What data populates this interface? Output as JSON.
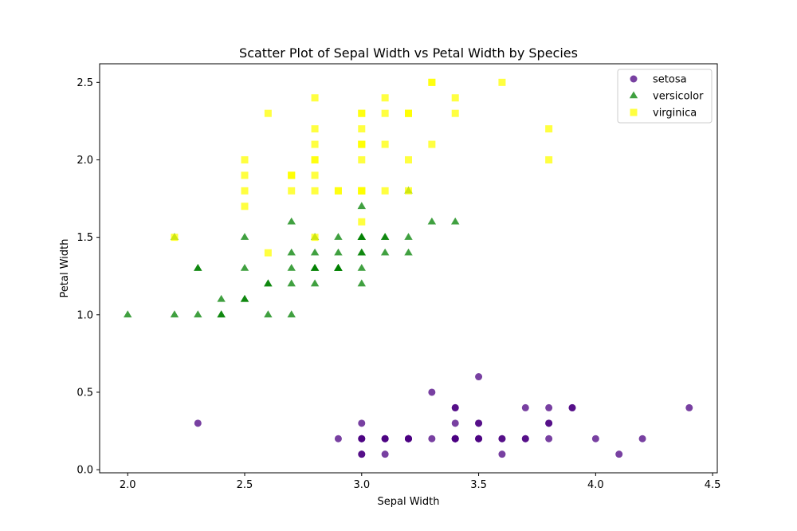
{
  "chart_data": {
    "type": "scatter",
    "title": "Scatter Plot of Sepal Width vs Petal Width by Species",
    "xlabel": "Sepal Width",
    "ylabel": "Petal Width",
    "xlim": [
      1.88,
      4.52
    ],
    "ylim": [
      -0.02,
      2.62
    ],
    "xticks": [
      2.0,
      2.5,
      3.0,
      3.5,
      4.0,
      4.5
    ],
    "xtick_labels": [
      "2.0",
      "2.5",
      "3.0",
      "3.5",
      "4.0",
      "4.5"
    ],
    "yticks": [
      0.0,
      0.5,
      1.0,
      1.5,
      2.0,
      2.5
    ],
    "ytick_labels": [
      "0.0",
      "0.5",
      "1.0",
      "1.5",
      "2.0",
      "2.5"
    ],
    "grid": false,
    "legend_position": "top-right",
    "series": [
      {
        "name": "setosa",
        "marker": "circle",
        "color": "#4b0082",
        "points": [
          [
            3.5,
            0.2
          ],
          [
            3.0,
            0.2
          ],
          [
            3.2,
            0.2
          ],
          [
            3.1,
            0.2
          ],
          [
            3.6,
            0.2
          ],
          [
            3.9,
            0.4
          ],
          [
            3.4,
            0.3
          ],
          [
            3.4,
            0.2
          ],
          [
            2.9,
            0.2
          ],
          [
            3.1,
            0.1
          ],
          [
            3.7,
            0.2
          ],
          [
            3.4,
            0.2
          ],
          [
            3.0,
            0.1
          ],
          [
            3.0,
            0.1
          ],
          [
            4.0,
            0.2
          ],
          [
            4.4,
            0.4
          ],
          [
            3.9,
            0.4
          ],
          [
            3.5,
            0.3
          ],
          [
            3.8,
            0.3
          ],
          [
            3.8,
            0.3
          ],
          [
            3.4,
            0.2
          ],
          [
            3.7,
            0.4
          ],
          [
            3.6,
            0.2
          ],
          [
            3.3,
            0.5
          ],
          [
            3.4,
            0.2
          ],
          [
            3.0,
            0.2
          ],
          [
            3.4,
            0.4
          ],
          [
            3.5,
            0.2
          ],
          [
            3.4,
            0.2
          ],
          [
            3.2,
            0.2
          ],
          [
            3.1,
            0.2
          ],
          [
            3.4,
            0.4
          ],
          [
            4.1,
            0.1
          ],
          [
            4.2,
            0.2
          ],
          [
            3.1,
            0.2
          ],
          [
            3.2,
            0.2
          ],
          [
            3.5,
            0.2
          ],
          [
            3.6,
            0.1
          ],
          [
            3.0,
            0.2
          ],
          [
            3.4,
            0.2
          ],
          [
            3.5,
            0.3
          ],
          [
            2.3,
            0.3
          ],
          [
            3.2,
            0.2
          ],
          [
            3.5,
            0.6
          ],
          [
            3.8,
            0.4
          ],
          [
            3.0,
            0.3
          ],
          [
            3.8,
            0.2
          ],
          [
            3.2,
            0.2
          ],
          [
            3.7,
            0.2
          ],
          [
            3.3,
            0.2
          ]
        ]
      },
      {
        "name": "versicolor",
        "marker": "triangle",
        "color": "#008000",
        "points": [
          [
            3.2,
            1.4
          ],
          [
            3.2,
            1.5
          ],
          [
            3.1,
            1.5
          ],
          [
            2.3,
            1.3
          ],
          [
            2.8,
            1.5
          ],
          [
            2.8,
            1.3
          ],
          [
            3.3,
            1.6
          ],
          [
            2.4,
            1.0
          ],
          [
            2.9,
            1.3
          ],
          [
            2.7,
            1.4
          ],
          [
            2.0,
            1.0
          ],
          [
            3.0,
            1.5
          ],
          [
            2.2,
            1.0
          ],
          [
            2.9,
            1.4
          ],
          [
            2.9,
            1.3
          ],
          [
            3.1,
            1.4
          ],
          [
            3.0,
            1.5
          ],
          [
            2.7,
            1.0
          ],
          [
            2.2,
            1.5
          ],
          [
            2.5,
            1.1
          ],
          [
            3.2,
            1.8
          ],
          [
            2.8,
            1.3
          ],
          [
            2.5,
            1.5
          ],
          [
            2.8,
            1.2
          ],
          [
            2.9,
            1.3
          ],
          [
            3.0,
            1.4
          ],
          [
            2.8,
            1.4
          ],
          [
            3.0,
            1.7
          ],
          [
            2.9,
            1.5
          ],
          [
            2.6,
            1.0
          ],
          [
            2.4,
            1.1
          ],
          [
            2.4,
            1.0
          ],
          [
            2.7,
            1.2
          ],
          [
            2.7,
            1.6
          ],
          [
            3.0,
            1.5
          ],
          [
            3.4,
            1.6
          ],
          [
            3.1,
            1.5
          ],
          [
            2.3,
            1.3
          ],
          [
            3.0,
            1.3
          ],
          [
            2.5,
            1.3
          ],
          [
            2.6,
            1.2
          ],
          [
            3.0,
            1.4
          ],
          [
            2.6,
            1.2
          ],
          [
            2.3,
            1.0
          ],
          [
            2.7,
            1.3
          ],
          [
            3.0,
            1.2
          ],
          [
            2.9,
            1.3
          ],
          [
            2.9,
            1.3
          ],
          [
            2.5,
            1.1
          ],
          [
            2.8,
            1.3
          ]
        ]
      },
      {
        "name": "virginica",
        "marker": "square",
        "color": "#ffff00",
        "points": [
          [
            3.3,
            2.5
          ],
          [
            2.7,
            1.9
          ],
          [
            3.0,
            2.1
          ],
          [
            2.9,
            1.8
          ],
          [
            3.0,
            2.2
          ],
          [
            3.0,
            2.1
          ],
          [
            2.5,
            1.7
          ],
          [
            2.9,
            1.8
          ],
          [
            2.5,
            1.8
          ],
          [
            3.6,
            2.5
          ],
          [
            3.2,
            2.0
          ],
          [
            2.7,
            1.9
          ],
          [
            3.0,
            2.1
          ],
          [
            2.5,
            2.0
          ],
          [
            2.8,
            2.4
          ],
          [
            3.2,
            2.3
          ],
          [
            3.0,
            1.8
          ],
          [
            3.8,
            2.2
          ],
          [
            2.6,
            2.3
          ],
          [
            2.2,
            1.5
          ],
          [
            3.2,
            2.3
          ],
          [
            2.8,
            2.0
          ],
          [
            2.8,
            2.0
          ],
          [
            2.7,
            1.8
          ],
          [
            3.3,
            2.1
          ],
          [
            3.2,
            1.8
          ],
          [
            2.8,
            1.8
          ],
          [
            3.0,
            1.8
          ],
          [
            2.8,
            2.1
          ],
          [
            3.0,
            1.6
          ],
          [
            2.8,
            1.9
          ],
          [
            3.8,
            2.0
          ],
          [
            2.8,
            2.2
          ],
          [
            2.8,
            1.5
          ],
          [
            2.6,
            1.4
          ],
          [
            3.0,
            2.3
          ],
          [
            3.4,
            2.4
          ],
          [
            3.1,
            1.8
          ],
          [
            3.0,
            1.8
          ],
          [
            3.1,
            2.1
          ],
          [
            3.1,
            2.4
          ],
          [
            3.1,
            2.3
          ],
          [
            2.7,
            1.9
          ],
          [
            3.2,
            2.3
          ],
          [
            3.3,
            2.5
          ],
          [
            3.0,
            2.3
          ],
          [
            2.5,
            1.9
          ],
          [
            3.0,
            2.0
          ],
          [
            3.4,
            2.3
          ],
          [
            3.0,
            1.8
          ]
        ]
      }
    ]
  }
}
